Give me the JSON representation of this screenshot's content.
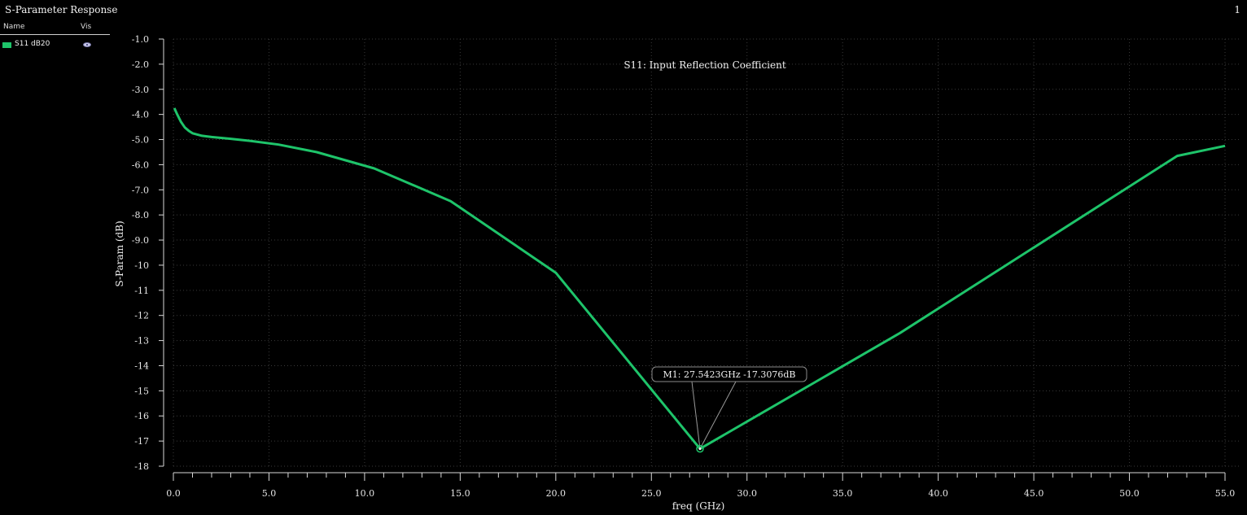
{
  "window": {
    "title": "S-Parameter Response",
    "page_number": "1"
  },
  "legend": {
    "header_name": "Name",
    "header_vis": "Vis",
    "items": [
      {
        "label": "S11 dB20",
        "color": "#1ec46a",
        "visible": true,
        "icon": "eye-icon"
      }
    ]
  },
  "chart_data": {
    "type": "line",
    "title": "S11: Input Reflection Coefficient",
    "xlabel": "freq (GHz)",
    "ylabel": "S-Param (dB)",
    "xlim": [
      0,
      55
    ],
    "ylim": [
      -18,
      -1
    ],
    "xticks": [
      0,
      5,
      10,
      15,
      20,
      25,
      30,
      35,
      40,
      45,
      50,
      55
    ],
    "xtick_labels": [
      "0.0",
      "5.0",
      "10.0",
      "15.0",
      "20.0",
      "25.0",
      "30.0",
      "35.0",
      "40.0",
      "45.0",
      "50.0",
      "55.0"
    ],
    "yticks": [
      -1,
      -2,
      -3,
      -4,
      -5,
      -6,
      -7,
      -8,
      -9,
      -10,
      -11,
      -12,
      -13,
      -14,
      -15,
      -16,
      -17,
      -18
    ],
    "ytick_labels": [
      "-1.0",
      "-2.0",
      "-3.0",
      "-4.0",
      "-5.0",
      "-6.0",
      "-7.0",
      "-8.0",
      "-9.0",
      "-10",
      "-11",
      "-12",
      "-13",
      "-14",
      "-15",
      "-16",
      "-17",
      "-18"
    ],
    "grid": true,
    "background": "#000000",
    "series": [
      {
        "name": "S11 dB20",
        "color": "#1ec46a",
        "x": [
          0.05,
          0.2,
          0.4,
          0.6,
          0.8,
          1.0,
          1.5,
          2.0,
          3.0,
          4.0,
          5.5,
          7.5,
          10.5,
          14.5,
          20.0,
          27.5423,
          38.0,
          52.5,
          55.0
        ],
        "y": [
          -3.75,
          -4.0,
          -4.3,
          -4.52,
          -4.65,
          -4.75,
          -4.85,
          -4.9,
          -4.97,
          -5.05,
          -5.2,
          -5.5,
          -6.15,
          -7.45,
          -10.3,
          -17.3076,
          -12.7,
          -5.65,
          -5.25
        ]
      }
    ],
    "marker": {
      "name": "M1",
      "x": 27.5423,
      "y": -17.3076,
      "label": "M1: 27.5423GHz -17.3076dB"
    }
  }
}
